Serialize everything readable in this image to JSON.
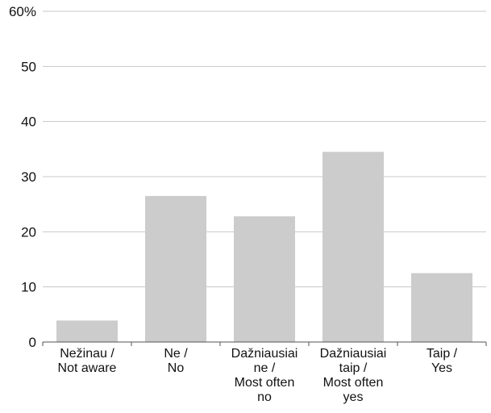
{
  "chart_data": {
    "type": "bar",
    "categories": [
      [
        "Nežinau /",
        "Not aware"
      ],
      [
        "Ne /",
        "No"
      ],
      [
        "Dažniausiai",
        "ne /",
        "Most often",
        "no"
      ],
      [
        "Dažniausiai",
        "taip /",
        "Most often",
        "yes"
      ],
      [
        "Taip /",
        "Yes"
      ]
    ],
    "values": [
      3.9,
      26.5,
      22.8,
      34.5,
      12.5
    ],
    "ylim": [
      0,
      60
    ],
    "yticks": [
      0,
      10,
      20,
      30,
      40,
      50,
      60
    ],
    "ytick_labels": [
      "0",
      "10",
      "20",
      "30",
      "40",
      "50",
      "60%"
    ],
    "grid": true,
    "bar_color": "#cccccc",
    "grid_color": "#c8c8c8"
  }
}
